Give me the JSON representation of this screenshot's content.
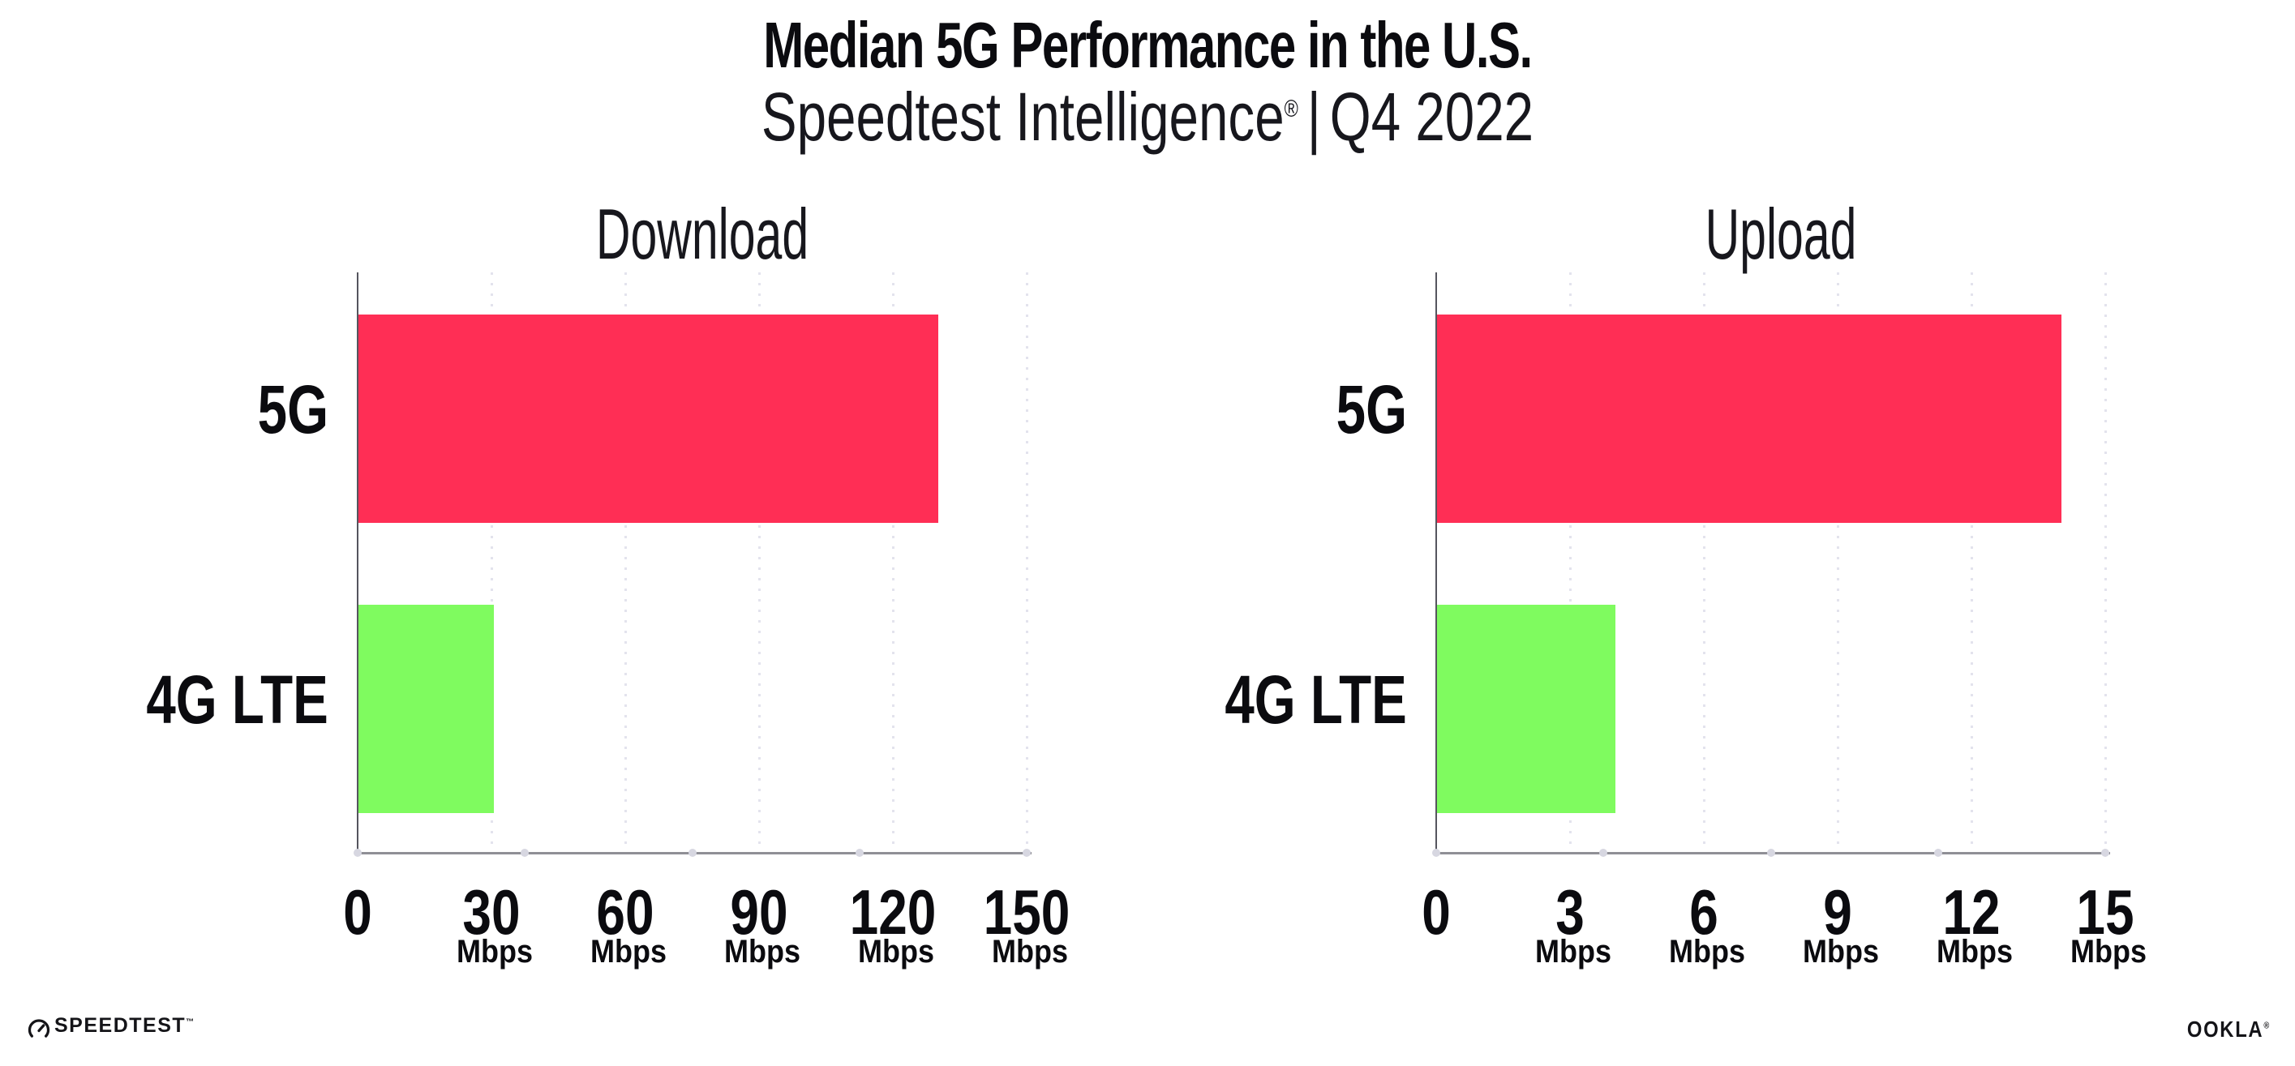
{
  "header": {
    "title": "Median 5G Performance in the U.S.",
    "subtitle": {
      "brand": "Speedtest Intelligence",
      "registered": "®",
      "divider": "|",
      "period": "Q4 2022"
    }
  },
  "chart_data": [
    {
      "type": "bar",
      "orientation": "horizontal",
      "title": "Download",
      "categories": [
        "5G",
        "4G LTE"
      ],
      "values": [
        130,
        30.3
      ],
      "unit": "Mbps",
      "xlabel": "",
      "ylabel": "",
      "xlim": [
        0,
        150
      ],
      "xticks": [
        0,
        30,
        60,
        90,
        120,
        150
      ],
      "series_colors": [
        "#FF2E55",
        "#7FFB5F"
      ],
      "grid": "dotted-vertical",
      "legend": "none"
    },
    {
      "type": "bar",
      "orientation": "horizontal",
      "title": "Upload",
      "categories": [
        "5G",
        "4G LTE"
      ],
      "values": [
        14,
        4
      ],
      "unit": "Mbps",
      "xlabel": "",
      "ylabel": "",
      "xlim": [
        0,
        15
      ],
      "xticks": [
        0,
        3,
        6,
        9,
        12,
        15
      ],
      "series_colors": [
        "#FF2E55",
        "#7FFB5F"
      ],
      "grid": "dotted-vertical",
      "legend": "none"
    }
  ],
  "footer": {
    "speedtest": "SPEEDTEST",
    "speedtest_mark": "™",
    "ookla": "OOKLA",
    "ookla_mark": "®"
  },
  "colors": {
    "bar_5g": "#FF2E55",
    "bar_4g_lte": "#7FFB5F",
    "x_axis": "#8F8F96",
    "y_axis": "#55555E",
    "gridline": "#E3E3ED",
    "axis_dot": "#D7D7E1",
    "text": "#0B0B0F"
  }
}
